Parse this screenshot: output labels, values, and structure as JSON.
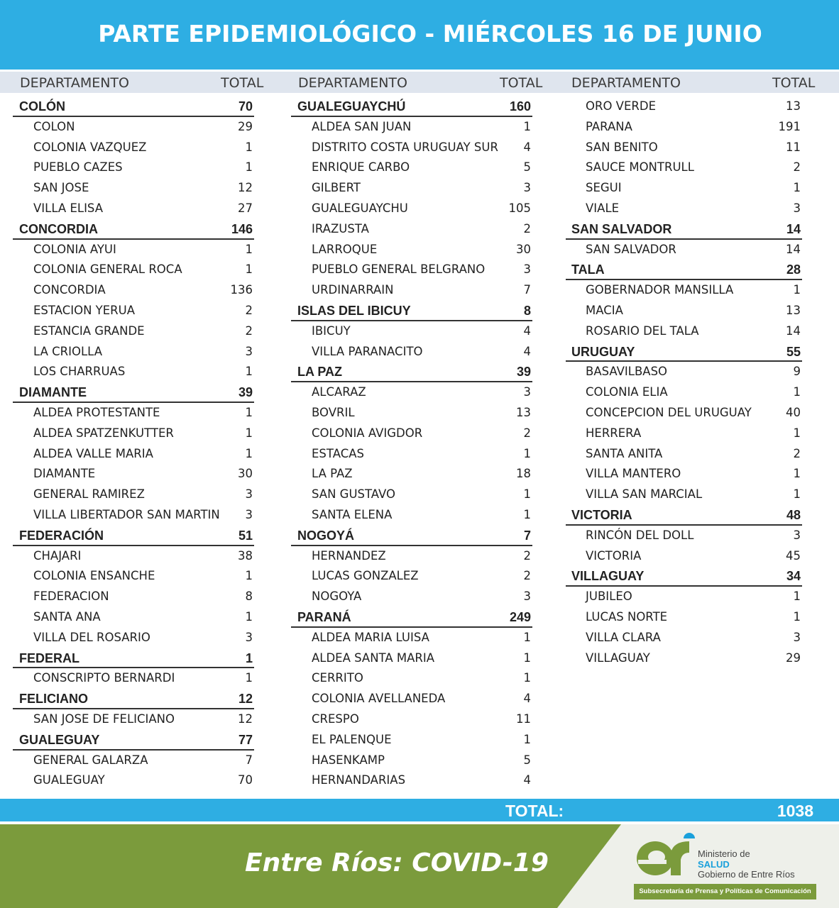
{
  "title": "PARTE EPIDEMIOLÓGICO - MIÉRCOLES 16 DE JUNIO",
  "header": {
    "departamento": "DEPARTAMENTO",
    "total": "TOTAL"
  },
  "columns": [
    [
      {
        "type": "group",
        "name": "COLÓN",
        "value": "70"
      },
      {
        "type": "item",
        "name": "COLON",
        "value": "29"
      },
      {
        "type": "item",
        "name": "COLONIA VAZQUEZ",
        "value": "1"
      },
      {
        "type": "item",
        "name": "PUEBLO CAZES",
        "value": "1"
      },
      {
        "type": "item",
        "name": "SAN JOSE",
        "value": "12"
      },
      {
        "type": "item",
        "name": "VILLA ELISA",
        "value": "27"
      },
      {
        "type": "group",
        "name": "CONCORDIA",
        "value": "146"
      },
      {
        "type": "item",
        "name": "COLONIA AYUI",
        "value": "1"
      },
      {
        "type": "item",
        "name": "COLONIA GENERAL ROCA",
        "value": "1"
      },
      {
        "type": "item",
        "name": "CONCORDIA",
        "value": "136"
      },
      {
        "type": "item",
        "name": "ESTACION YERUA",
        "value": "2"
      },
      {
        "type": "item",
        "name": "ESTANCIA GRANDE",
        "value": "2"
      },
      {
        "type": "item",
        "name": "LA CRIOLLA",
        "value": "3"
      },
      {
        "type": "item",
        "name": "LOS CHARRUAS",
        "value": "1"
      },
      {
        "type": "group",
        "name": "DIAMANTE",
        "value": "39"
      },
      {
        "type": "item",
        "name": "ALDEA PROTESTANTE",
        "value": "1"
      },
      {
        "type": "item",
        "name": "ALDEA SPATZENKUTTER",
        "value": "1"
      },
      {
        "type": "item",
        "name": "ALDEA VALLE MARIA",
        "value": "1"
      },
      {
        "type": "item",
        "name": "DIAMANTE",
        "value": "30"
      },
      {
        "type": "item",
        "name": "GENERAL RAMIREZ",
        "value": "3"
      },
      {
        "type": "item",
        "name": "VILLA LIBERTADOR SAN MARTIN",
        "value": "3"
      },
      {
        "type": "group",
        "name": "FEDERACIÓN",
        "value": "51"
      },
      {
        "type": "item",
        "name": "CHAJARI",
        "value": "38"
      },
      {
        "type": "item",
        "name": "COLONIA ENSANCHE",
        "value": "1"
      },
      {
        "type": "item",
        "name": "FEDERACION",
        "value": "8"
      },
      {
        "type": "item",
        "name": "SANTA ANA",
        "value": "1"
      },
      {
        "type": "item",
        "name": "VILLA DEL ROSARIO",
        "value": "3"
      },
      {
        "type": "group",
        "name": "FEDERAL",
        "value": "1"
      },
      {
        "type": "item",
        "name": "CONSCRIPTO BERNARDI",
        "value": "1"
      },
      {
        "type": "group",
        "name": "FELICIANO",
        "value": "12"
      },
      {
        "type": "item",
        "name": "SAN JOSE DE FELICIANO",
        "value": "12"
      },
      {
        "type": "group",
        "name": "GUALEGUAY",
        "value": "77"
      },
      {
        "type": "item",
        "name": "GENERAL GALARZA",
        "value": "7"
      },
      {
        "type": "item",
        "name": "GUALEGUAY",
        "value": "70"
      }
    ],
    [
      {
        "type": "group",
        "name": "GUALEGUAYCHÚ",
        "value": "160"
      },
      {
        "type": "item",
        "name": "ALDEA SAN JUAN",
        "value": "1"
      },
      {
        "type": "item",
        "name": "DISTRITO COSTA URUGUAY SUR",
        "value": "4"
      },
      {
        "type": "item",
        "name": "ENRIQUE CARBO",
        "value": "5"
      },
      {
        "type": "item",
        "name": "GILBERT",
        "value": "3"
      },
      {
        "type": "item",
        "name": "GUALEGUAYCHU",
        "value": "105"
      },
      {
        "type": "item",
        "name": "IRAZUSTA",
        "value": "2"
      },
      {
        "type": "item",
        "name": "LARROQUE",
        "value": "30"
      },
      {
        "type": "item",
        "name": "PUEBLO GENERAL BELGRANO",
        "value": "3"
      },
      {
        "type": "item",
        "name": "URDINARRAIN",
        "value": "7"
      },
      {
        "type": "group",
        "name": "ISLAS DEL IBICUY",
        "value": "8"
      },
      {
        "type": "item",
        "name": "IBICUY",
        "value": "4"
      },
      {
        "type": "item",
        "name": "VILLA PARANACITO",
        "value": "4"
      },
      {
        "type": "group",
        "name": "LA PAZ",
        "value": "39"
      },
      {
        "type": "item",
        "name": "ALCARAZ",
        "value": "3"
      },
      {
        "type": "item",
        "name": "BOVRIL",
        "value": "13"
      },
      {
        "type": "item",
        "name": "COLONIA AVIGDOR",
        "value": "2"
      },
      {
        "type": "item",
        "name": "ESTACAS",
        "value": "1"
      },
      {
        "type": "item",
        "name": "LA PAZ",
        "value": "18"
      },
      {
        "type": "item",
        "name": "SAN GUSTAVO",
        "value": "1"
      },
      {
        "type": "item",
        "name": "SANTA ELENA",
        "value": "1"
      },
      {
        "type": "group",
        "name": "NOGOYÁ",
        "value": "7"
      },
      {
        "type": "item",
        "name": "HERNANDEZ",
        "value": "2"
      },
      {
        "type": "item",
        "name": "LUCAS GONZALEZ",
        "value": "2"
      },
      {
        "type": "item",
        "name": "NOGOYA",
        "value": "3"
      },
      {
        "type": "group",
        "name": "PARANÁ",
        "value": "249"
      },
      {
        "type": "item",
        "name": "ALDEA MARIA LUISA",
        "value": "1"
      },
      {
        "type": "item",
        "name": "ALDEA SANTA MARIA",
        "value": "1"
      },
      {
        "type": "item",
        "name": "CERRITO",
        "value": "1"
      },
      {
        "type": "item",
        "name": "COLONIA AVELLANEDA",
        "value": "4"
      },
      {
        "type": "item",
        "name": "CRESPO",
        "value": "11"
      },
      {
        "type": "item",
        "name": "EL PALENQUE",
        "value": "1"
      },
      {
        "type": "item",
        "name": "HASENKAMP",
        "value": "5"
      },
      {
        "type": "item",
        "name": "HERNANDARIAS",
        "value": "4"
      }
    ],
    [
      {
        "type": "item",
        "name": "ORO VERDE",
        "value": "13"
      },
      {
        "type": "item",
        "name": "PARANA",
        "value": "191"
      },
      {
        "type": "item",
        "name": "SAN BENITO",
        "value": "11"
      },
      {
        "type": "item",
        "name": "SAUCE MONTRULL",
        "value": "2"
      },
      {
        "type": "item",
        "name": "SEGUI",
        "value": "1"
      },
      {
        "type": "item",
        "name": "VIALE",
        "value": "3"
      },
      {
        "type": "group",
        "name": "SAN SALVADOR",
        "value": "14"
      },
      {
        "type": "item",
        "name": "SAN SALVADOR",
        "value": "14"
      },
      {
        "type": "group",
        "name": "TALA",
        "value": "28"
      },
      {
        "type": "item",
        "name": "GOBERNADOR MANSILLA",
        "value": "1"
      },
      {
        "type": "item",
        "name": "MACIA",
        "value": "13"
      },
      {
        "type": "item",
        "name": "ROSARIO DEL TALA",
        "value": "14"
      },
      {
        "type": "group",
        "name": "URUGUAY",
        "value": "55"
      },
      {
        "type": "item",
        "name": "BASAVILBASO",
        "value": "9"
      },
      {
        "type": "item",
        "name": "COLONIA ELIA",
        "value": "1"
      },
      {
        "type": "item",
        "name": "CONCEPCION DEL URUGUAY",
        "value": "40"
      },
      {
        "type": "item",
        "name": "HERRERA",
        "value": "1"
      },
      {
        "type": "item",
        "name": "SANTA ANITA",
        "value": "2"
      },
      {
        "type": "item",
        "name": "VILLA MANTERO",
        "value": "1"
      },
      {
        "type": "item",
        "name": "VILLA SAN MARCIAL",
        "value": "1"
      },
      {
        "type": "group",
        "name": "VICTORIA",
        "value": "48"
      },
      {
        "type": "item",
        "name": "RINCÓN DEL DOLL",
        "value": "3"
      },
      {
        "type": "item",
        "name": "VICTORIA",
        "value": "45"
      },
      {
        "type": "group",
        "name": "VILLAGUAY",
        "value": "34"
      },
      {
        "type": "item",
        "name": "JUBILEO",
        "value": "1"
      },
      {
        "type": "item",
        "name": "LUCAS NORTE",
        "value": "1"
      },
      {
        "type": "item",
        "name": "VILLA CLARA",
        "value": "3"
      },
      {
        "type": "item",
        "name": "VILLAGUAY",
        "value": "29"
      }
    ]
  ],
  "total": {
    "label": "TOTAL:",
    "value": "1038"
  },
  "footer": {
    "tagline": "Entre Ríos: COVID-19",
    "logo_text": "er",
    "ministerio": "Ministerio de",
    "salud": "SALUD",
    "gobierno": "Gobierno de Entre Ríos",
    "subsecretaria": "Subsecretaría de Prensa y Políticas de Comunicación"
  },
  "colors": {
    "blue": "#2eaee3",
    "green": "#7b9b3c",
    "header_bg": "#dfe5ee"
  }
}
